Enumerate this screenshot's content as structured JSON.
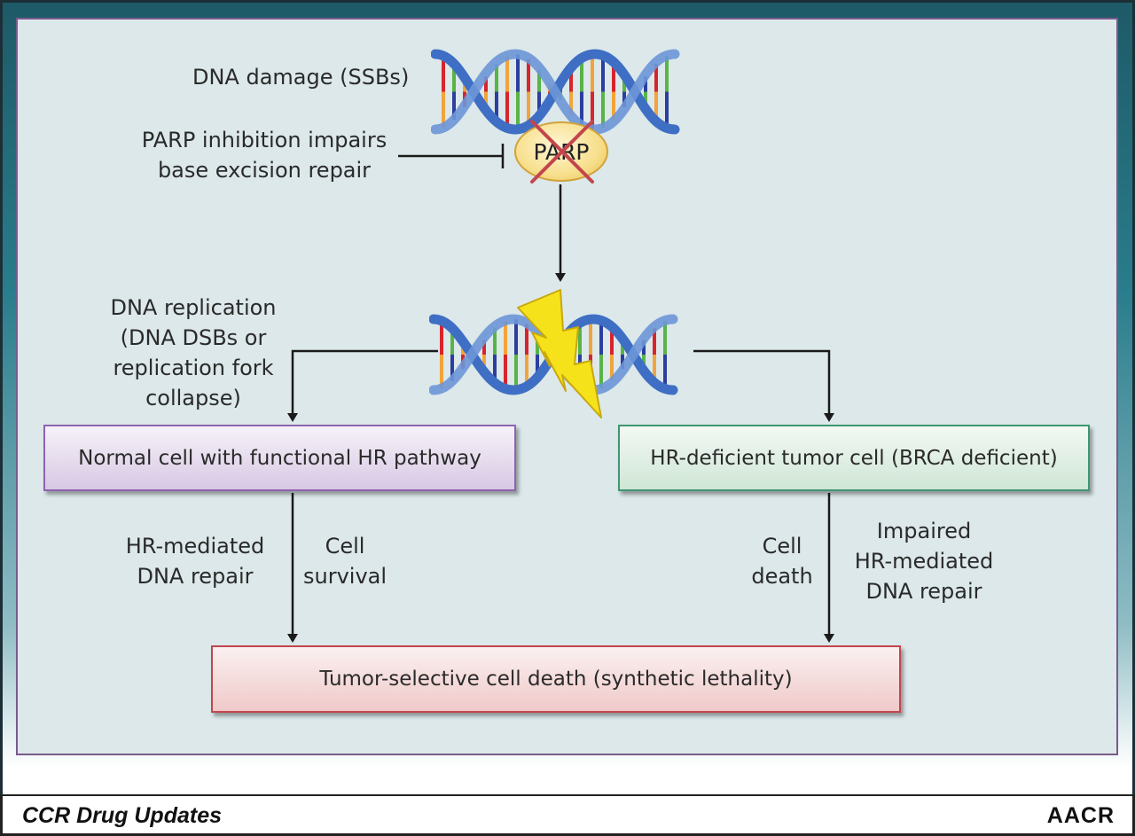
{
  "labels": {
    "dna_damage": "DNA damage (SSBs)",
    "parp_inhibition": [
      "PARP inhibition impairs",
      "base excision repair"
    ],
    "parp": "PARP",
    "dna_replication": [
      "DNA replication",
      "(DNA DSBs or",
      "replication fork",
      "collapse)"
    ],
    "normal_cell": "Normal cell with functional HR pathway",
    "tumor_cell": "HR-deficient tumor cell (BRCA deficient)",
    "hr_repair": [
      "HR-mediated",
      "DNA repair"
    ],
    "cell_survival": [
      "Cell",
      "survival"
    ],
    "cell_death": [
      "Cell",
      "death"
    ],
    "impaired_repair": [
      "Impaired",
      "HR-mediated",
      "DNA repair"
    ],
    "result": "Tumor-selective cell death (synthetic lethality)"
  },
  "footer": {
    "title": "CCR Drug Updates",
    "logo": "AACR"
  },
  "colors": {
    "helix_blue": "#3f6fc4",
    "base_red": "#d8242c",
    "base_green": "#58b447",
    "base_orange": "#f2a43a",
    "base_navy": "#2c3e9e",
    "lightning": "#f6e21a",
    "cross": "#c2464e"
  }
}
